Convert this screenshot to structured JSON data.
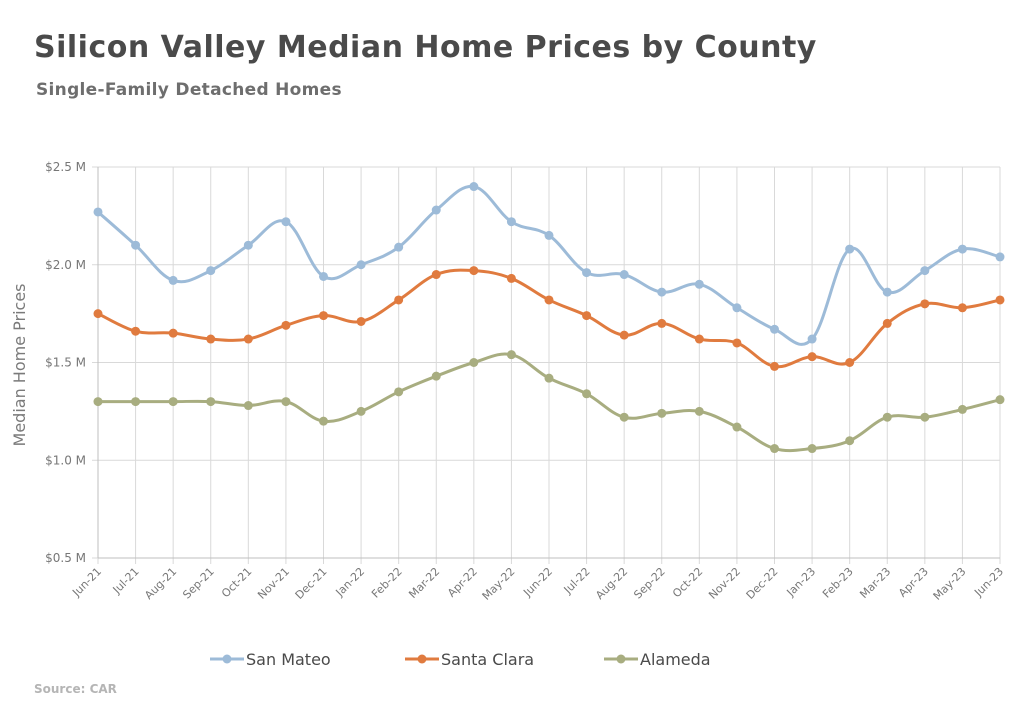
{
  "chart_data": {
    "type": "line",
    "title": "Silicon Valley Median Home Prices by County",
    "subtitle": "Single-Family Detached Homes",
    "ylabel": "Median Home Prices",
    "xlabel": "",
    "source": "Source: CAR",
    "ylim": [
      0.5,
      2.5
    ],
    "yticks": [
      {
        "value": 0.5,
        "label": "$0.5 M"
      },
      {
        "value": 1.0,
        "label": "$1.0 M"
      },
      {
        "value": 1.5,
        "label": "$1.5 M"
      },
      {
        "value": 2.0,
        "label": "$2.0 M"
      },
      {
        "value": 2.5,
        "label": "$2.5 M"
      }
    ],
    "grid": "vertical and horizontal",
    "legend": "bottom",
    "categories": [
      "Jun-21",
      "Jul-21",
      "Aug-21",
      "Sep-21",
      "Oct-21",
      "Nov-21",
      "Dec-21",
      "Jan-22",
      "Feb-22",
      "Mar-22",
      "Apr-22",
      "May-22",
      "Jun-22",
      "Jul-22",
      "Aug-22",
      "Sep-22",
      "Oct-22",
      "Nov-22",
      "Dec-22",
      "Jan-23",
      "Feb-23",
      "Mar-23",
      "Apr-23",
      "May-23",
      "Jun-23"
    ],
    "series": [
      {
        "name": "San Mateo",
        "color": "#9dbbd8",
        "values": [
          2.27,
          2.1,
          1.92,
          1.97,
          2.1,
          2.22,
          1.94,
          2.0,
          2.09,
          2.28,
          2.4,
          2.22,
          2.15,
          1.96,
          1.95,
          1.86,
          1.9,
          1.78,
          1.67,
          1.62,
          2.08,
          1.86,
          1.97,
          2.08,
          2.04
        ]
      },
      {
        "name": "Santa Clara",
        "color": "#e07b3f",
        "values": [
          1.75,
          1.66,
          1.65,
          1.62,
          1.62,
          1.69,
          1.74,
          1.71,
          1.82,
          1.95,
          1.97,
          1.93,
          1.82,
          1.74,
          1.64,
          1.7,
          1.62,
          1.6,
          1.48,
          1.53,
          1.5,
          1.7,
          1.8,
          1.78,
          1.82
        ]
      },
      {
        "name": "Alameda",
        "color": "#a8ad80",
        "values": [
          1.3,
          1.3,
          1.3,
          1.3,
          1.28,
          1.3,
          1.2,
          1.25,
          1.35,
          1.43,
          1.5,
          1.54,
          1.42,
          1.34,
          1.22,
          1.24,
          1.25,
          1.17,
          1.06,
          1.06,
          1.1,
          1.22,
          1.22,
          1.26,
          1.31
        ]
      }
    ]
  }
}
